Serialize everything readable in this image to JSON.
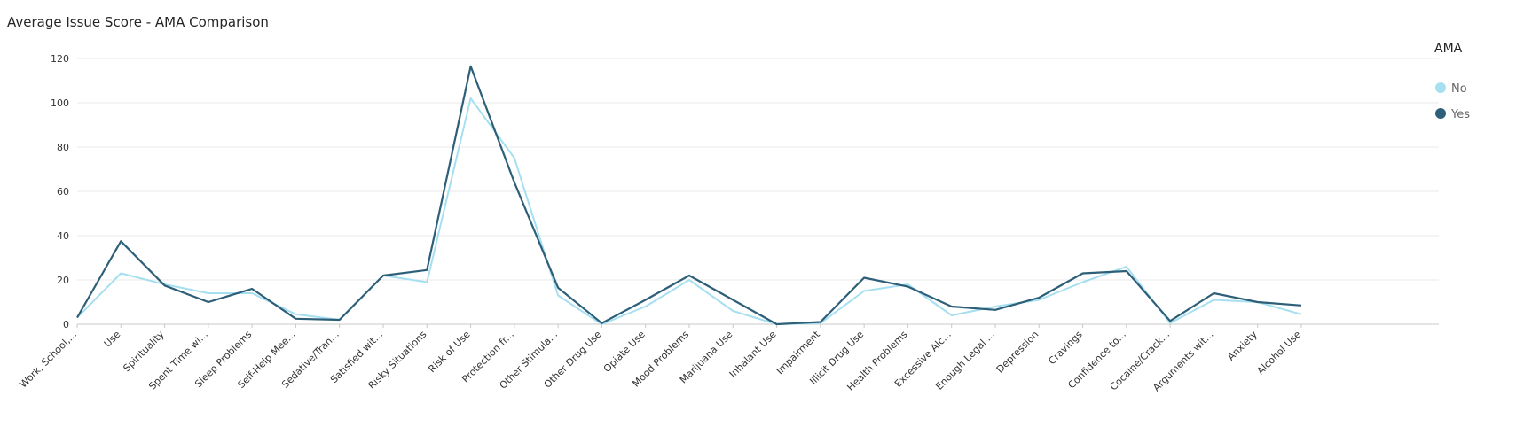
{
  "chart_data": {
    "type": "line",
    "title": "Average Issue Score - AMA Comparison",
    "xlabel": "",
    "ylabel": "",
    "ylim": [
      0,
      120
    ],
    "yticks": [
      0,
      20,
      40,
      60,
      80,
      100,
      120
    ],
    "grid": true,
    "legend_placement": "top-right",
    "legend_title": "AMA",
    "categories": [
      "Work, School,...",
      "Use",
      "Spirituality",
      "Spent Time wi...",
      "Sleep Problems",
      "Self-Help Mee...",
      "Sedative/Tran...",
      "Satisfied wit...",
      "Risky Situations",
      "Risk of Use",
      "Protection fr...",
      "Other Stimula...",
      "Other Drug Use",
      "Opiate Use",
      "Mood Problems",
      "Marijuana Use",
      "Inhalant Use",
      "Impairment",
      "Illicit Drug Use",
      "Health Problems",
      "Excessive Alc...",
      "Enough Legal ...",
      "Depression",
      "Cravings",
      "Confidence to...",
      "Cocaine/Crack...",
      "Arguments wit...",
      "Anxiety",
      "Alcohol Use"
    ],
    "series": [
      {
        "name": "No",
        "color": "#a6dff0",
        "values": [
          3,
          23,
          18,
          14,
          14,
          4.5,
          2,
          22,
          19,
          102,
          75,
          13,
          0,
          8,
          20,
          6,
          0,
          0.5,
          15,
          18,
          4,
          8,
          11,
          19,
          26,
          0.5,
          11,
          10,
          4.5
        ]
      },
      {
        "name": "Yes",
        "color": "#2d5f78",
        "values": [
          3,
          37.5,
          17.5,
          10,
          16,
          2.5,
          2,
          22,
          24.5,
          116.5,
          64,
          16.5,
          0.5,
          11,
          22,
          11,
          0,
          1,
          21,
          17,
          8,
          6.5,
          12,
          23,
          24,
          1.5,
          14,
          10,
          8.5
        ]
      }
    ]
  }
}
